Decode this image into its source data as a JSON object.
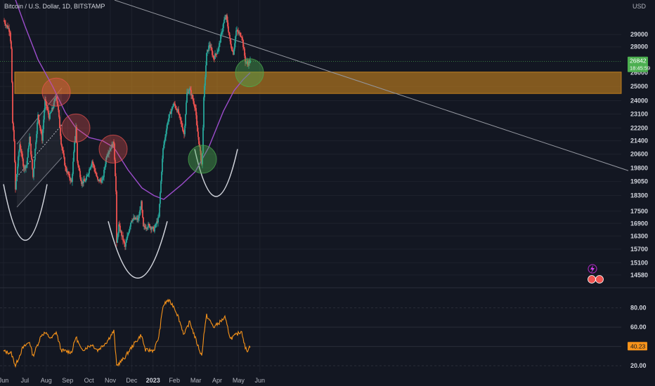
{
  "header": {
    "symbol_line": "Bitcoin / U.S. Dollar, 1D, BITSTAMP",
    "currency": "USD"
  },
  "chart_data": [
    {
      "type": "candlestick",
      "series": "Bitcoin / U.S. Dollar, 1D, BITSTAMP",
      "yscale": "log",
      "ylim": [
        14200,
        31500
      ],
      "y_ticks": [
        29000,
        28000,
        26000,
        25000,
        24000,
        23100,
        22200,
        21400,
        20600,
        19800,
        19050,
        18300,
        17500,
        16900,
        16300,
        15700,
        15100,
        14580
      ],
      "x_ticks": [
        "Jun",
        "Jul",
        "Aug",
        "Sep",
        "Oct",
        "Nov",
        "Dec",
        "2023",
        "Feb",
        "Mar",
        "Apr",
        "May",
        "Jun"
      ],
      "last_price": "26842",
      "countdown": "18:45:59",
      "price_path": [
        [
          "2022-06-01",
          30200
        ],
        [
          "2022-06-10",
          29300
        ],
        [
          "2022-06-12",
          27800
        ],
        [
          "2022-06-14",
          22500
        ],
        [
          "2022-06-16",
          21500
        ],
        [
          "2022-06-18",
          18600
        ],
        [
          "2022-06-24",
          21200
        ],
        [
          "2022-06-30",
          19800
        ],
        [
          "2022-07-04",
          20000
        ],
        [
          "2022-07-08",
          21600
        ],
        [
          "2022-07-13",
          19300
        ],
        [
          "2022-07-20",
          23000
        ],
        [
          "2022-07-26",
          21500
        ],
        [
          "2022-07-30",
          24000
        ],
        [
          "2022-08-05",
          22900
        ],
        [
          "2022-08-10",
          23500
        ],
        [
          "2022-08-15",
          24400
        ],
        [
          "2022-08-18",
          23300
        ],
        [
          "2022-08-22",
          21300
        ],
        [
          "2022-08-28",
          19800
        ],
        [
          "2022-09-06",
          19000
        ],
        [
          "2022-09-12",
          22300
        ],
        [
          "2022-09-14",
          20200
        ],
        [
          "2022-09-20",
          19000
        ],
        [
          "2022-09-26",
          19100
        ],
        [
          "2022-10-05",
          20200
        ],
        [
          "2022-10-13",
          19100
        ],
        [
          "2022-10-20",
          19100
        ],
        [
          "2022-10-26",
          20600
        ],
        [
          "2022-11-05",
          21300
        ],
        [
          "2022-11-08",
          18500
        ],
        [
          "2022-11-09",
          15900
        ],
        [
          "2022-11-12",
          16800
        ],
        [
          "2022-11-21",
          15800
        ],
        [
          "2022-11-30",
          17100
        ],
        [
          "2022-12-10",
          17100
        ],
        [
          "2022-12-14",
          17900
        ],
        [
          "2022-12-17",
          16700
        ],
        [
          "2022-12-25",
          16800
        ],
        [
          "2023-01-01",
          16600
        ],
        [
          "2023-01-08",
          17200
        ],
        [
          "2023-01-14",
          20900
        ],
        [
          "2023-01-21",
          22700
        ],
        [
          "2023-01-29",
          23800
        ],
        [
          "2023-02-04",
          23300
        ],
        [
          "2023-02-13",
          21800
        ],
        [
          "2023-02-17",
          24500
        ],
        [
          "2023-02-21",
          24800
        ],
        [
          "2023-03-01",
          23500
        ],
        [
          "2023-03-03",
          22300
        ],
        [
          "2023-03-10",
          20000
        ],
        [
          "2023-03-11",
          20600
        ],
        [
          "2023-03-13",
          24100
        ],
        [
          "2023-03-17",
          27400
        ],
        [
          "2023-03-21",
          28200
        ],
        [
          "2023-03-27",
          27100
        ],
        [
          "2023-04-03",
          27900
        ],
        [
          "2023-04-11",
          30200
        ],
        [
          "2023-04-14",
          30500
        ],
        [
          "2023-04-20",
          28200
        ],
        [
          "2023-04-24",
          27500
        ],
        [
          "2023-04-28",
          29300
        ],
        [
          "2023-05-06",
          28900
        ],
        [
          "2023-05-11",
          26900
        ],
        [
          "2023-05-14",
          26700
        ],
        [
          "2023-05-18",
          26842
        ]
      ],
      "moving_average": [
        [
          "2022-06-10",
          33500
        ],
        [
          "2022-07-01",
          29800
        ],
        [
          "2022-07-20",
          27000
        ],
        [
          "2022-08-10",
          25000
        ],
        [
          "2022-08-28",
          23200
        ],
        [
          "2022-09-12",
          22200
        ],
        [
          "2022-10-01",
          21600
        ],
        [
          "2022-10-20",
          21400
        ],
        [
          "2022-11-05",
          21000
        ],
        [
          "2022-11-25",
          19700
        ],
        [
          "2022-12-15",
          18700
        ],
        [
          "2023-01-01",
          18300
        ],
        [
          "2023-01-15",
          18100
        ],
        [
          "2023-02-10",
          18900
        ],
        [
          "2023-03-01",
          19600
        ],
        [
          "2023-03-20",
          21000
        ],
        [
          "2023-04-10",
          23300
        ],
        [
          "2023-04-25",
          24700
        ],
        [
          "2023-05-08",
          25500
        ],
        [
          "2023-05-18",
          26000
        ]
      ]
    },
    {
      "type": "line",
      "series": "RSI",
      "ylim": [
        15,
        95
      ],
      "y_ticks": [
        "80.00",
        "60.00",
        "40.00",
        "20.00"
      ],
      "last_value": "40.23",
      "points": [
        [
          "2022-06-01",
          35
        ],
        [
          "2022-06-12",
          33
        ],
        [
          "2022-06-18",
          20
        ],
        [
          "2022-06-28",
          38
        ],
        [
          "2022-07-08",
          45
        ],
        [
          "2022-07-13",
          30
        ],
        [
          "2022-07-25",
          52
        ],
        [
          "2022-07-30",
          54
        ],
        [
          "2022-08-08",
          48
        ],
        [
          "2022-08-15",
          55
        ],
        [
          "2022-08-22",
          36
        ],
        [
          "2022-09-06",
          34
        ],
        [
          "2022-09-12",
          50
        ],
        [
          "2022-09-20",
          36
        ],
        [
          "2022-10-05",
          42
        ],
        [
          "2022-10-13",
          36
        ],
        [
          "2022-10-26",
          45
        ],
        [
          "2022-11-05",
          56
        ],
        [
          "2022-11-09",
          20
        ],
        [
          "2022-11-20",
          28
        ],
        [
          "2022-12-01",
          40
        ],
        [
          "2022-12-14",
          52
        ],
        [
          "2022-12-20",
          36
        ],
        [
          "2023-01-01",
          36
        ],
        [
          "2023-01-08",
          50
        ],
        [
          "2023-01-14",
          82
        ],
        [
          "2023-01-21",
          88
        ],
        [
          "2023-01-29",
          82
        ],
        [
          "2023-02-04",
          72
        ],
        [
          "2023-02-13",
          52
        ],
        [
          "2023-02-21",
          66
        ],
        [
          "2023-03-03",
          44
        ],
        [
          "2023-03-10",
          30
        ],
        [
          "2023-03-13",
          52
        ],
        [
          "2023-03-17",
          72
        ],
        [
          "2023-03-27",
          60
        ],
        [
          "2023-04-03",
          64
        ],
        [
          "2023-04-12",
          70
        ],
        [
          "2023-04-20",
          48
        ],
        [
          "2023-04-28",
          52
        ],
        [
          "2023-05-06",
          56
        ],
        [
          "2023-05-11",
          38
        ],
        [
          "2023-05-14",
          36
        ],
        [
          "2023-05-18",
          40.23
        ]
      ]
    }
  ],
  "colors": {
    "background": "#131722",
    "up_candle": "#26a69a",
    "down_candle": "#ef5350",
    "moving_average": "#9c4dcc",
    "rsi_line": "#f7931a",
    "zone": "#c7821d",
    "last_price_label": "#4caf50",
    "rsi_label": "#f7931a"
  }
}
